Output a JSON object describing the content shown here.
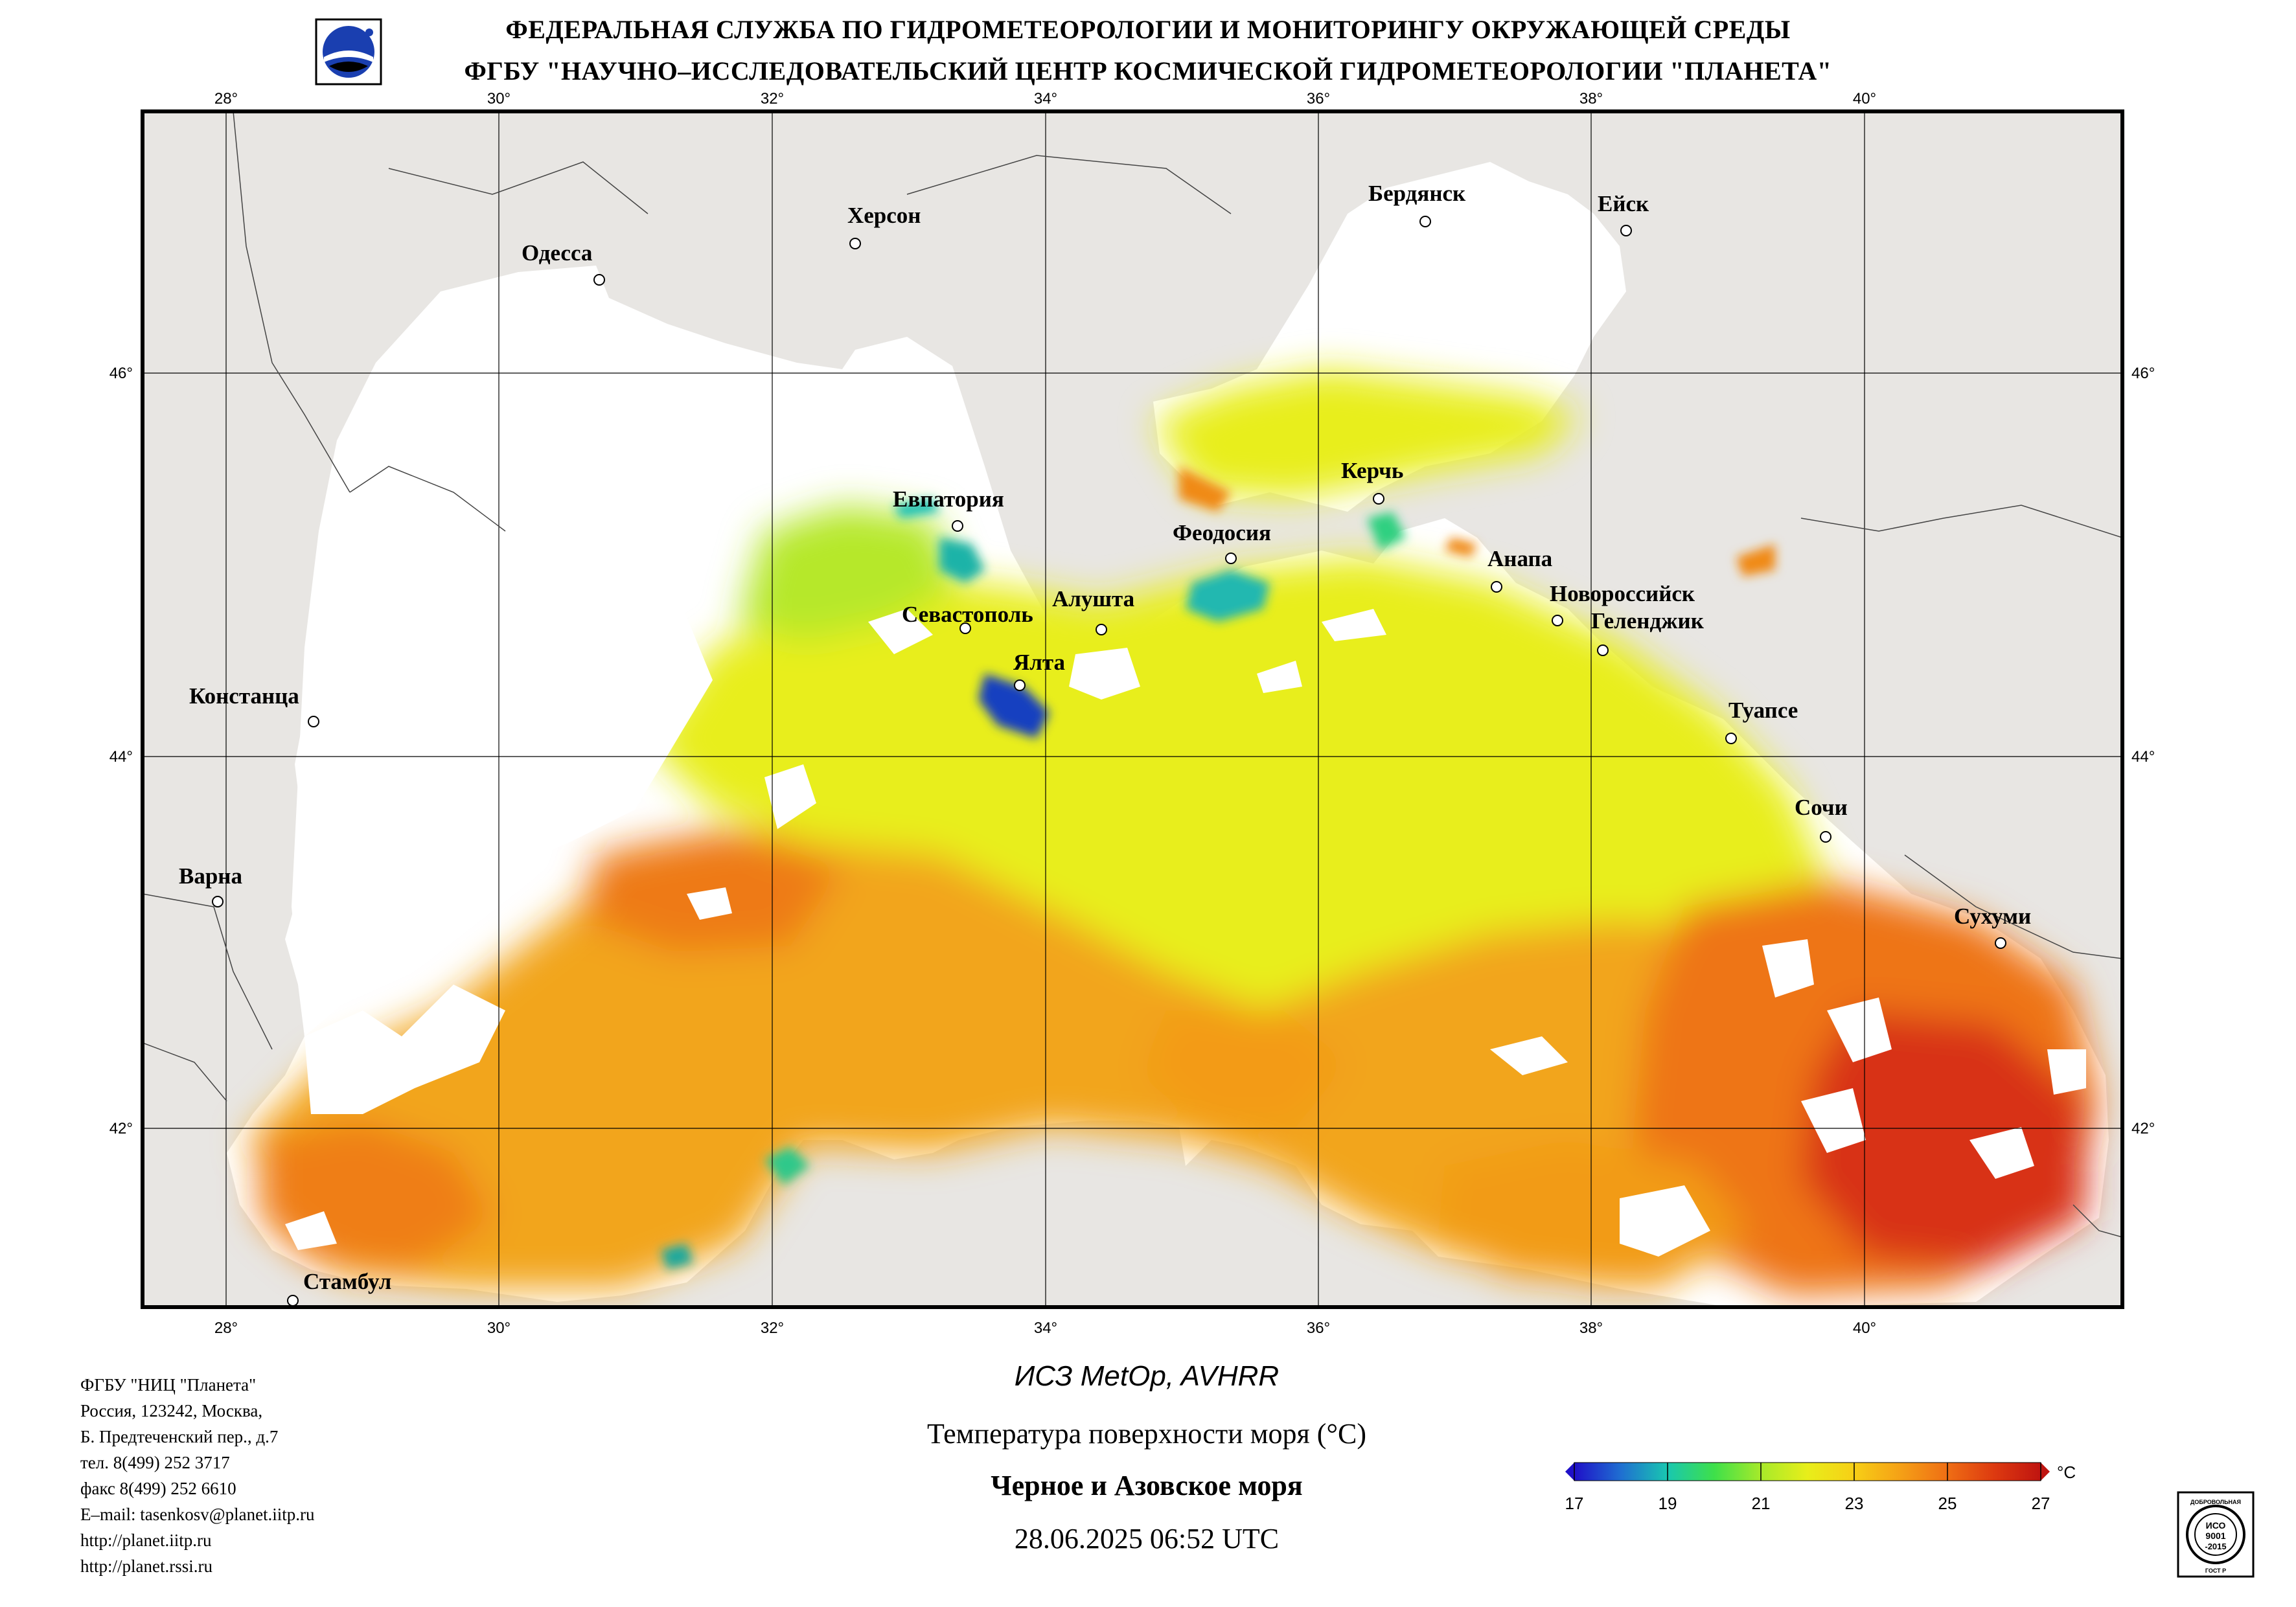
{
  "header": {
    "line1": "ФЕДЕРАЛЬНАЯ СЛУЖБА ПО ГИДРОМЕТЕОРОЛОГИИ И МОНИТОРИНГУ ОКРУЖАЮЩЕЙ СРЕДЫ",
    "line2": "ФГБУ \"НАУЧНО–ИССЛЕДОВАТЕЛЬСКИЙ ЦЕНТР КОСМИЧЕСКОЙ ГИДРОМЕТЕОРОЛОГИИ \"ПЛАНЕТА\""
  },
  "map": {
    "lon_labels": [
      "28°",
      "30°",
      "32°",
      "34°",
      "36°",
      "38°",
      "40°"
    ],
    "lat_labels": [
      "46°",
      "44°",
      "42°"
    ],
    "cities": [
      "Одесса",
      "Херсон",
      "Бердянск",
      "Ейск",
      "Керчь",
      "Евпатория",
      "Феодосия",
      "Анапа",
      "Новороссийск",
      "Геленджик",
      "Севастополь",
      "Алушта",
      "Ялта",
      "Констанца",
      "Туапсе",
      "Сочи",
      "Варна",
      "Сухуми",
      "Стамбул"
    ],
    "colors": {
      "land": "#e8e6e3",
      "no_data": "#ffffff",
      "cool": "#1f6fd1",
      "mid": "#e8ee1a",
      "warm": "#f08a18",
      "hot": "#c81a0c"
    }
  },
  "contact": {
    "lines": [
      "ФГБУ \"НИЦ \"Планета\"",
      "Россия, 123242, Москва,",
      "Б. Предтеченский пер., д.7",
      "тел. 8(499) 252 3717",
      "факс 8(499) 252 6610",
      "E–mail: tasenkosv@planet.iitp.ru",
      "http://planet.iitp.ru",
      "http://planet.rssi.ru"
    ]
  },
  "caption": {
    "satellite": "ИСЗ MetOp, AVHRR",
    "parameter": "Температура поверхности моря (°С)",
    "region": "Черное и Азовское моря",
    "datetime": "28.06.2025 06:52 UTC"
  },
  "colorbar": {
    "ticks": [
      "17",
      "19",
      "21",
      "23",
      "25",
      "27"
    ],
    "unit": "°C",
    "range": [
      17,
      27
    ]
  },
  "badge": {
    "lines": [
      "ДОБРОВОЛЬНАЯ",
      "ИСО",
      "9001",
      "-2015",
      "ГОСТ Р"
    ]
  }
}
